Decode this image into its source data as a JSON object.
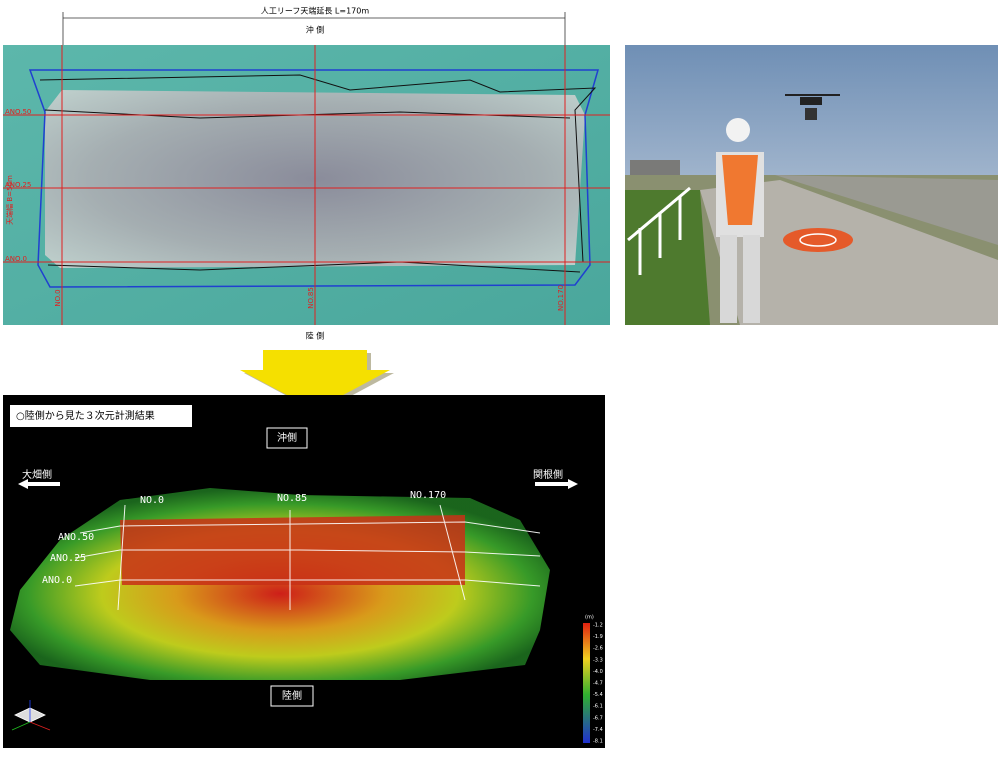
{
  "aerial": {
    "dimension_label": "人工リーフ天端延長 L=170m",
    "offshore": "沖 側",
    "landward": "陸 側",
    "width_label": "天端幅 B=50m",
    "rows": [
      "ANO.50",
      "ANO.25",
      "ANO.0"
    ],
    "columns": [
      "NO.0",
      "NO.85",
      "NO.170"
    ]
  },
  "result": {
    "title": "○陸側から見た３次元計測結果",
    "offshore": "沖側",
    "landward": "陸側",
    "left_direction": "大畑側",
    "right_direction": "関根側",
    "columns": [
      "NO.0",
      "NO.85",
      "NO.170"
    ],
    "rows": [
      "ANO.50",
      "ANO.25",
      "ANO.0"
    ],
    "scale": {
      "unit": "(m)",
      "labels": [
        "-1.2",
        "-1.9",
        "-2.6",
        "-3.3",
        "-4.0",
        "-4.7",
        "-5.4",
        "-6.1",
        "-6.7",
        "-7.4",
        "-8.1"
      ]
    }
  }
}
